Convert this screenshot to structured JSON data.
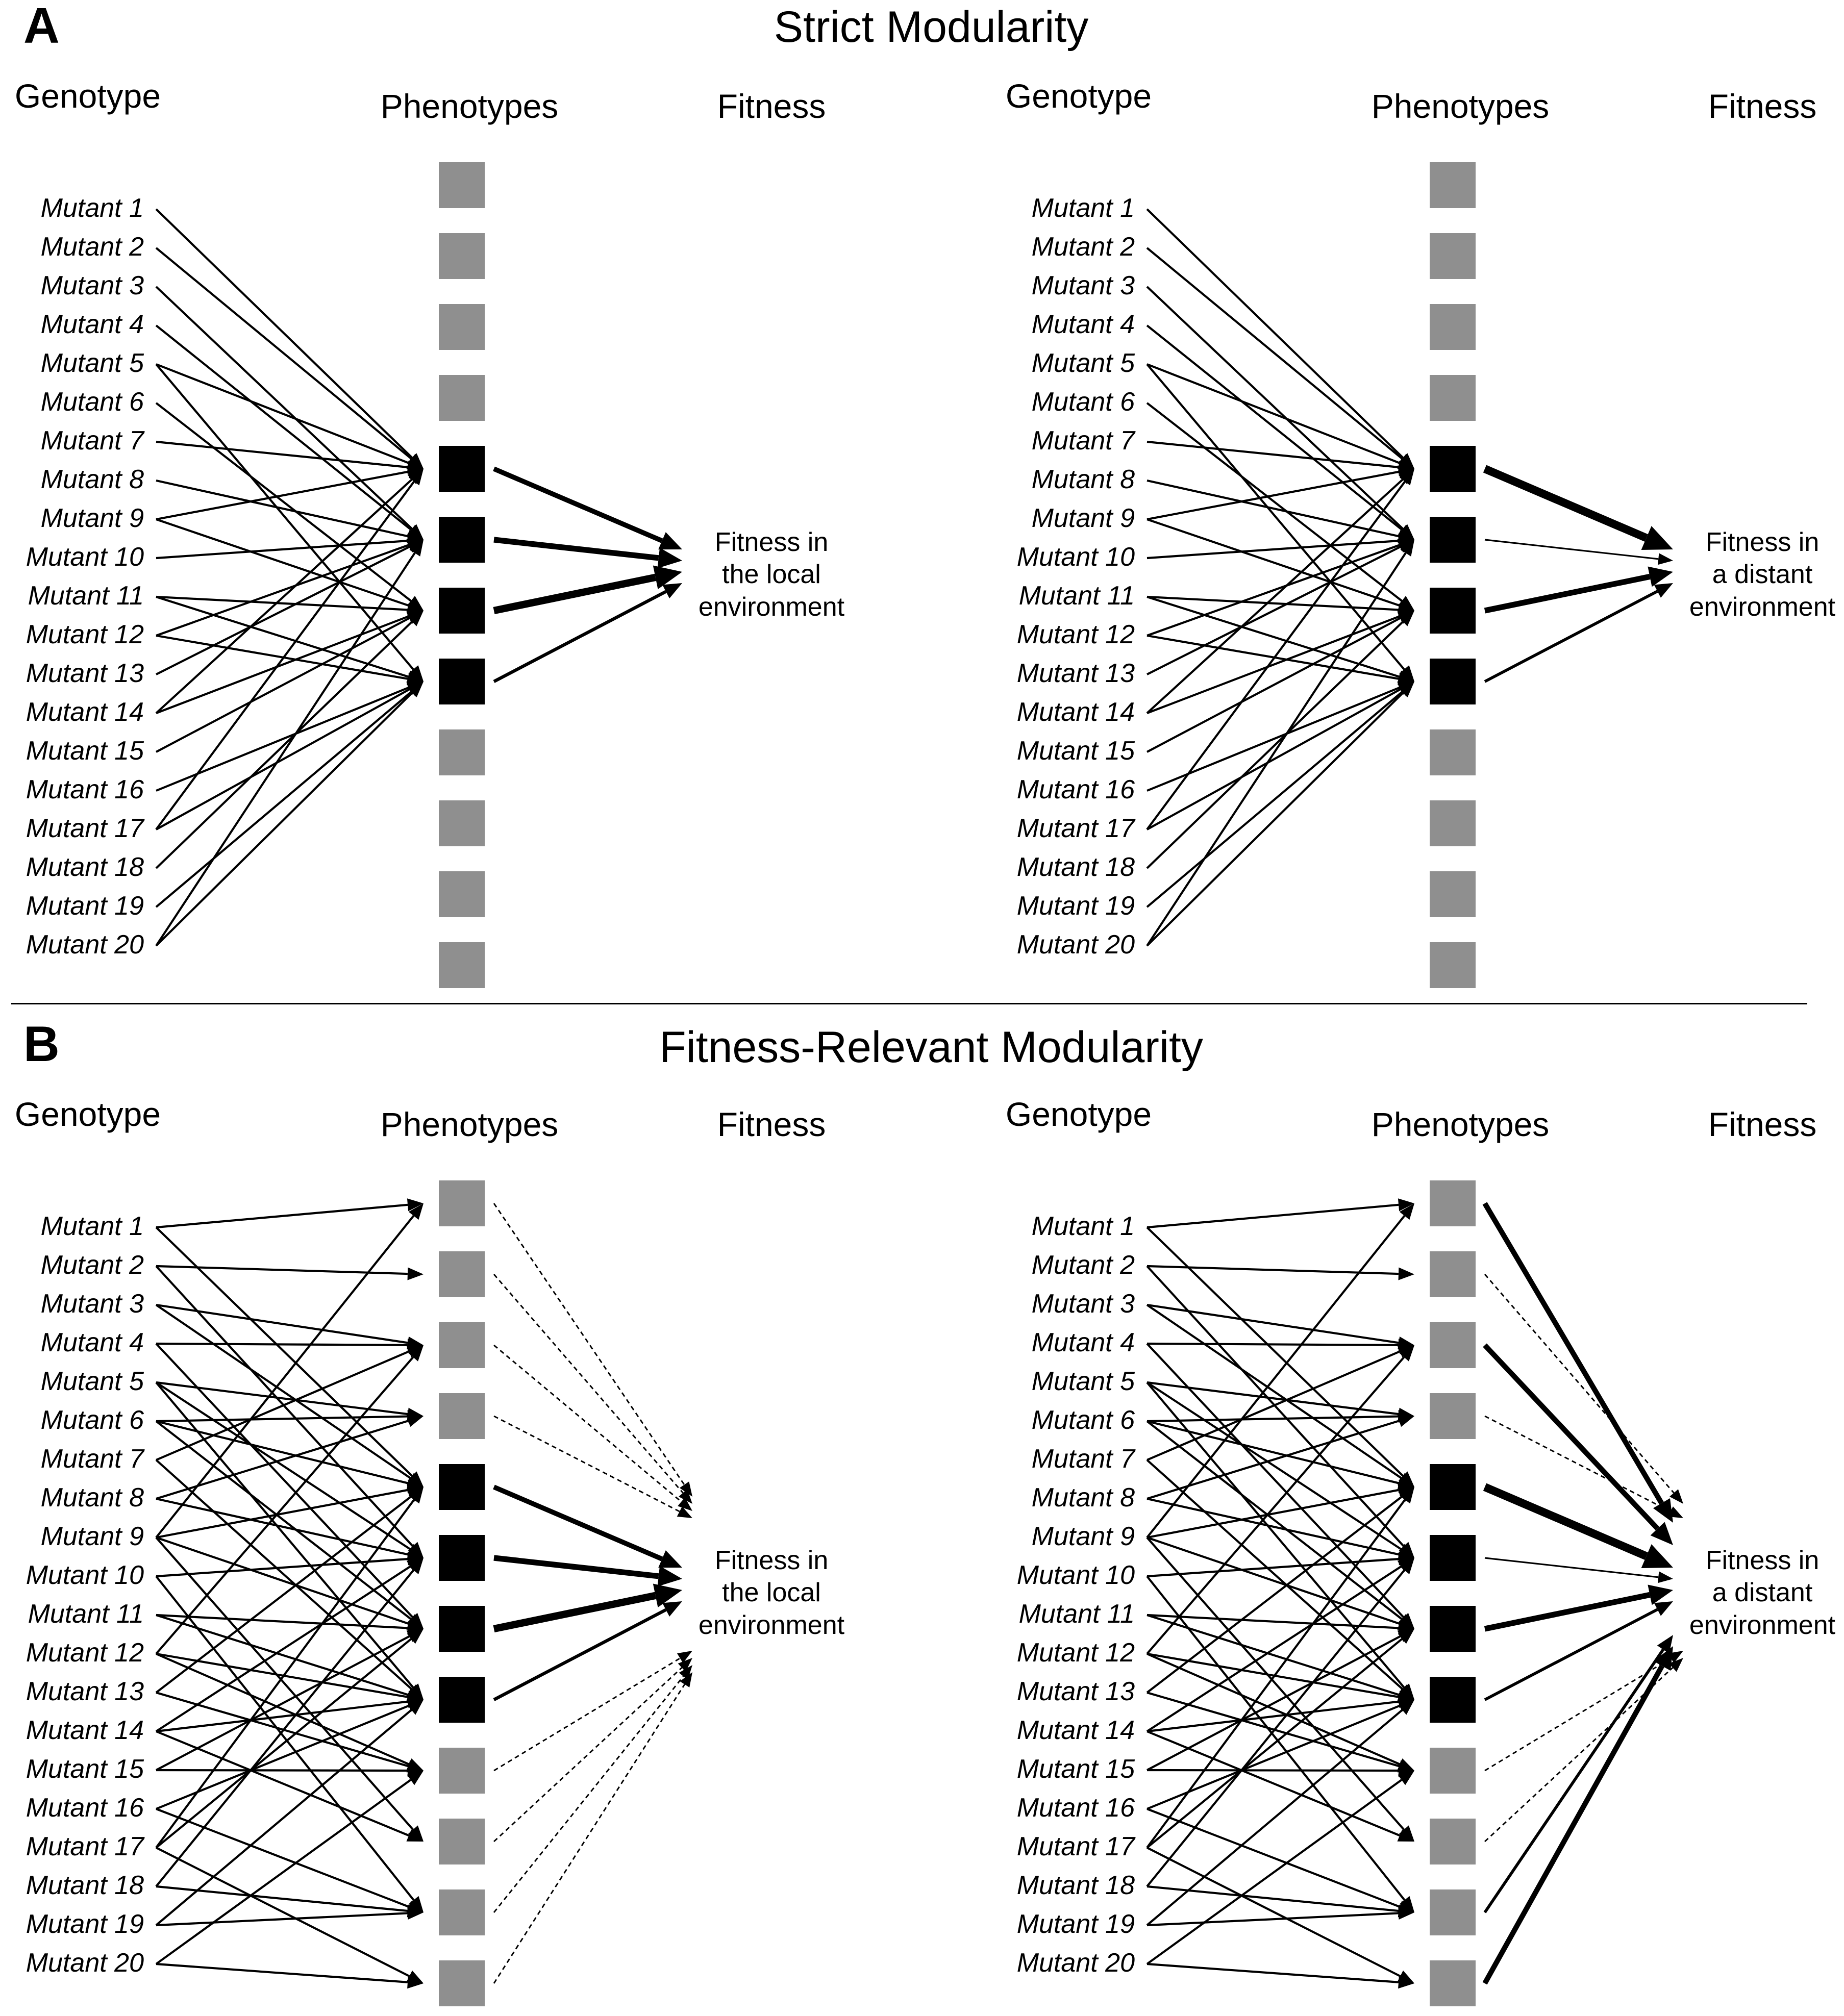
{
  "panels": [
    {
      "letter": "A",
      "title": "Strict Modularity",
      "diagrams": [
        {
          "headers": {
            "genotype": "Genotype",
            "phenotypes": "Phenotypes",
            "fitness": "Fitness"
          },
          "mutants": [
            "Mutant 1",
            "Mutant 2",
            "Mutant 3",
            "Mutant 4",
            "Mutant 5",
            "Mutant 6",
            "Mutant 7",
            "Mutant 8",
            "Mutant 9",
            "Mutant 10",
            "Mutant 11",
            "Mutant 12",
            "Mutant 13",
            "Mutant 14",
            "Mutant 15",
            "Mutant 16",
            "Mutant 17",
            "Mutant 18",
            "Mutant 19",
            "Mutant 20"
          ],
          "phenotype_states": [
            "gray",
            "gray",
            "gray",
            "gray",
            "black",
            "black",
            "black",
            "black",
            "gray",
            "gray",
            "gray",
            "gray"
          ],
          "fitness_label": [
            "Fitness in",
            "the local",
            "environment"
          ],
          "mutant_links": [
            [
              1,
              5
            ],
            [
              2,
              5
            ],
            [
              3,
              6
            ],
            [
              4,
              6
            ],
            [
              5,
              5
            ],
            [
              5,
              8
            ],
            [
              6,
              7
            ],
            [
              7,
              5
            ],
            [
              8,
              6
            ],
            [
              9,
              5
            ],
            [
              9,
              7
            ],
            [
              10,
              6
            ],
            [
              11,
              7
            ],
            [
              11,
              8
            ],
            [
              12,
              6
            ],
            [
              12,
              8
            ],
            [
              13,
              6
            ],
            [
              14,
              5
            ],
            [
              14,
              7
            ],
            [
              15,
              7
            ],
            [
              16,
              8
            ],
            [
              17,
              5
            ],
            [
              17,
              8
            ],
            [
              18,
              7
            ],
            [
              19,
              8
            ],
            [
              20,
              6
            ],
            [
              20,
              8
            ]
          ],
          "fitness_links": [
            {
              "from": 5,
              "weight": 3
            },
            {
              "from": 6,
              "weight": 3.5
            },
            {
              "from": 7,
              "weight": 4.5
            },
            {
              "from": 8,
              "weight": 2
            }
          ]
        },
        {
          "headers": {
            "genotype": "Genotype",
            "phenotypes": "Phenotypes",
            "fitness": "Fitness"
          },
          "mutants": [
            "Mutant 1",
            "Mutant 2",
            "Mutant 3",
            "Mutant 4",
            "Mutant 5",
            "Mutant 6",
            "Mutant 7",
            "Mutant 8",
            "Mutant 9",
            "Mutant 10",
            "Mutant 11",
            "Mutant 12",
            "Mutant 13",
            "Mutant 14",
            "Mutant 15",
            "Mutant 16",
            "Mutant 17",
            "Mutant 18",
            "Mutant 19",
            "Mutant 20"
          ],
          "phenotype_states": [
            "gray",
            "gray",
            "gray",
            "gray",
            "black",
            "black",
            "black",
            "black",
            "gray",
            "gray",
            "gray",
            "gray"
          ],
          "fitness_label": [
            "Fitness in",
            "a distant",
            "environment"
          ],
          "mutant_links": [
            [
              1,
              5
            ],
            [
              2,
              5
            ],
            [
              3,
              6
            ],
            [
              4,
              6
            ],
            [
              5,
              5
            ],
            [
              5,
              8
            ],
            [
              6,
              7
            ],
            [
              7,
              5
            ],
            [
              8,
              6
            ],
            [
              9,
              5
            ],
            [
              9,
              7
            ],
            [
              10,
              6
            ],
            [
              11,
              7
            ],
            [
              11,
              8
            ],
            [
              12,
              6
            ],
            [
              12,
              8
            ],
            [
              13,
              6
            ],
            [
              14,
              5
            ],
            [
              14,
              7
            ],
            [
              15,
              7
            ],
            [
              16,
              8
            ],
            [
              17,
              5
            ],
            [
              17,
              8
            ],
            [
              18,
              7
            ],
            [
              19,
              8
            ],
            [
              20,
              6
            ],
            [
              20,
              8
            ]
          ],
          "fitness_links": [
            {
              "from": 5,
              "weight": 5
            },
            {
              "from": 6,
              "weight": 1
            },
            {
              "from": 7,
              "weight": 3.5
            },
            {
              "from": 8,
              "weight": 1.8
            }
          ]
        }
      ]
    },
    {
      "letter": "B",
      "title": "Fitness-Relevant Modularity",
      "diagrams": [
        {
          "headers": {
            "genotype": "Genotype",
            "phenotypes": "Phenotypes",
            "fitness": "Fitness"
          },
          "mutants": [
            "Mutant 1",
            "Mutant 2",
            "Mutant 3",
            "Mutant 4",
            "Mutant 5",
            "Mutant 6",
            "Mutant 7",
            "Mutant 8",
            "Mutant 9",
            "Mutant 10",
            "Mutant 11",
            "Mutant 12",
            "Mutant 13",
            "Mutant 14",
            "Mutant 15",
            "Mutant 16",
            "Mutant 17",
            "Mutant 18",
            "Mutant 19",
            "Mutant 20"
          ],
          "phenotype_states": [
            "gray",
            "gray",
            "gray",
            "gray",
            "black",
            "black",
            "black",
            "black",
            "gray",
            "gray",
            "gray",
            "gray"
          ],
          "fitness_label": [
            "Fitness in",
            "the local",
            "environment"
          ],
          "mutant_links": [
            [
              1,
              1
            ],
            [
              1,
              5
            ],
            [
              2,
              2
            ],
            [
              2,
              6
            ],
            [
              3,
              3
            ],
            [
              3,
              5
            ],
            [
              4,
              3
            ],
            [
              4,
              7
            ],
            [
              5,
              4
            ],
            [
              5,
              6
            ],
            [
              5,
              8
            ],
            [
              6,
              4
            ],
            [
              6,
              5
            ],
            [
              6,
              7
            ],
            [
              7,
              3
            ],
            [
              7,
              8
            ],
            [
              8,
              4
            ],
            [
              8,
              6
            ],
            [
              9,
              1
            ],
            [
              9,
              5
            ],
            [
              9,
              7
            ],
            [
              9,
              10
            ],
            [
              10,
              6
            ],
            [
              10,
              11
            ],
            [
              11,
              7
            ],
            [
              11,
              8
            ],
            [
              12,
              3
            ],
            [
              12,
              8
            ],
            [
              12,
              9
            ],
            [
              13,
              5
            ],
            [
              13,
              9
            ],
            [
              14,
              6
            ],
            [
              14,
              8
            ],
            [
              14,
              10
            ],
            [
              15,
              7
            ],
            [
              15,
              9
            ],
            [
              16,
              8
            ],
            [
              16,
              11
            ],
            [
              17,
              5
            ],
            [
              17,
              7
            ],
            [
              17,
              12
            ],
            [
              18,
              6
            ],
            [
              18,
              11
            ],
            [
              19,
              8
            ],
            [
              19,
              11
            ],
            [
              20,
              9
            ],
            [
              20,
              12
            ]
          ],
          "fitness_links": [
            {
              "from": 5,
              "weight": 3
            },
            {
              "from": 6,
              "weight": 3.5
            },
            {
              "from": 7,
              "weight": 4.5
            },
            {
              "from": 8,
              "weight": 2
            }
          ],
          "dashed_links": [
            1,
            2,
            3,
            4,
            9,
            10,
            11,
            12
          ]
        },
        {
          "headers": {
            "genotype": "Genotype",
            "phenotypes": "Phenotypes",
            "fitness": "Fitness"
          },
          "mutants": [
            "Mutant 1",
            "Mutant 2",
            "Mutant 3",
            "Mutant 4",
            "Mutant 5",
            "Mutant 6",
            "Mutant 7",
            "Mutant 8",
            "Mutant 9",
            "Mutant 10",
            "Mutant 11",
            "Mutant 12",
            "Mutant 13",
            "Mutant 14",
            "Mutant 15",
            "Mutant 16",
            "Mutant 17",
            "Mutant 18",
            "Mutant 19",
            "Mutant 20"
          ],
          "phenotype_states": [
            "gray",
            "gray",
            "gray",
            "gray",
            "black",
            "black",
            "black",
            "black",
            "gray",
            "gray",
            "gray",
            "gray"
          ],
          "fitness_label": [
            "Fitness in",
            "a distant",
            "environment"
          ],
          "mutant_links": [
            [
              1,
              1
            ],
            [
              1,
              5
            ],
            [
              2,
              2
            ],
            [
              2,
              6
            ],
            [
              3,
              3
            ],
            [
              3,
              5
            ],
            [
              4,
              3
            ],
            [
              4,
              7
            ],
            [
              5,
              4
            ],
            [
              5,
              6
            ],
            [
              5,
              8
            ],
            [
              6,
              4
            ],
            [
              6,
              5
            ],
            [
              6,
              7
            ],
            [
              7,
              3
            ],
            [
              7,
              8
            ],
            [
              8,
              4
            ],
            [
              8,
              6
            ],
            [
              9,
              1
            ],
            [
              9,
              5
            ],
            [
              9,
              7
            ],
            [
              9,
              10
            ],
            [
              10,
              6
            ],
            [
              10,
              11
            ],
            [
              11,
              7
            ],
            [
              11,
              8
            ],
            [
              12,
              3
            ],
            [
              12,
              8
            ],
            [
              12,
              9
            ],
            [
              13,
              5
            ],
            [
              13,
              9
            ],
            [
              14,
              6
            ],
            [
              14,
              8
            ],
            [
              14,
              10
            ],
            [
              15,
              7
            ],
            [
              15,
              9
            ],
            [
              16,
              8
            ],
            [
              16,
              11
            ],
            [
              17,
              5
            ],
            [
              17,
              7
            ],
            [
              17,
              12
            ],
            [
              18,
              6
            ],
            [
              18,
              11
            ],
            [
              19,
              8
            ],
            [
              19,
              11
            ],
            [
              20,
              9
            ],
            [
              20,
              12
            ]
          ],
          "fitness_links": [
            {
              "from": 1,
              "weight": 3.2
            },
            {
              "from": 3,
              "weight": 3.2
            },
            {
              "from": 5,
              "weight": 5
            },
            {
              "from": 6,
              "weight": 1
            },
            {
              "from": 7,
              "weight": 3.5
            },
            {
              "from": 8,
              "weight": 1.8
            },
            {
              "from": 11,
              "weight": 1.8
            },
            {
              "from": 12,
              "weight": 3.2
            }
          ],
          "dashed_links": [
            2,
            4,
            9,
            10
          ]
        }
      ]
    }
  ],
  "colors": {
    "gray_box": "#8f8f8f",
    "black_box": "#000000",
    "line": "#000000"
  }
}
